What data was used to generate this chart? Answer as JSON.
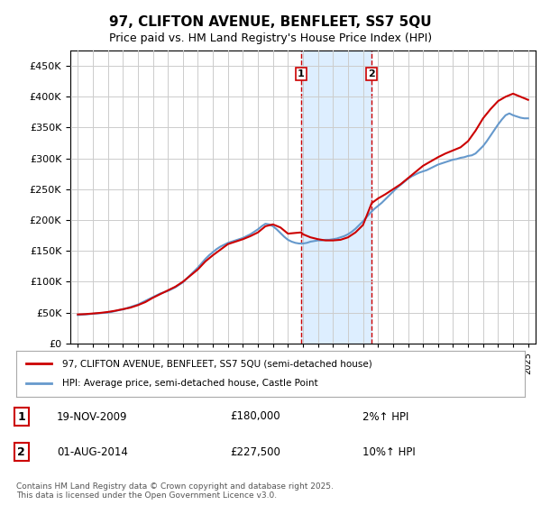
{
  "title": "97, CLIFTON AVENUE, BENFLEET, SS7 5QU",
  "subtitle": "Price paid vs. HM Land Registry's House Price Index (HPI)",
  "footer": "Contains HM Land Registry data © Crown copyright and database right 2025.\nThis data is licensed under the Open Government Licence v3.0.",
  "legend_line1": "97, CLIFTON AVENUE, BENFLEET, SS7 5QU (semi-detached house)",
  "legend_line2": "HPI: Average price, semi-detached house, Castle Point",
  "transactions": [
    {
      "num": 1,
      "date": "19-NOV-2009",
      "price": 180000,
      "pct": "2%↑ HPI",
      "year": 2009.88
    },
    {
      "num": 2,
      "date": "01-AUG-2014",
      "price": 227500,
      "pct": "10%↑ HPI",
      "year": 2014.58
    }
  ],
  "red_color": "#cc0000",
  "blue_color": "#6699cc",
  "shade_color": "#ddeeff",
  "grid_color": "#cccccc",
  "background_color": "#ffffff",
  "ylim": [
    0,
    475000
  ],
  "xlim": [
    1994.5,
    2025.5
  ],
  "yticks": [
    0,
    50000,
    100000,
    150000,
    200000,
    250000,
    300000,
    350000,
    400000,
    450000
  ],
  "xticks": [
    1995,
    1996,
    1997,
    1998,
    1999,
    2000,
    2001,
    2002,
    2003,
    2004,
    2005,
    2006,
    2007,
    2008,
    2009,
    2010,
    2011,
    2012,
    2013,
    2014,
    2015,
    2016,
    2017,
    2018,
    2019,
    2020,
    2021,
    2022,
    2023,
    2024,
    2025
  ],
  "hpi_years": [
    1995,
    1995.25,
    1995.5,
    1995.75,
    1996,
    1996.25,
    1996.5,
    1996.75,
    1997,
    1997.25,
    1997.5,
    1997.75,
    1998,
    1998.25,
    1998.5,
    1998.75,
    1999,
    1999.25,
    1999.5,
    1999.75,
    2000,
    2000.25,
    2000.5,
    2000.75,
    2001,
    2001.25,
    2001.5,
    2001.75,
    2002,
    2002.25,
    2002.5,
    2002.75,
    2003,
    2003.25,
    2003.5,
    2003.75,
    2004,
    2004.25,
    2004.5,
    2004.75,
    2005,
    2005.25,
    2005.5,
    2005.75,
    2006,
    2006.25,
    2006.5,
    2006.75,
    2007,
    2007.25,
    2007.5,
    2007.75,
    2008,
    2008.25,
    2008.5,
    2008.75,
    2009,
    2009.25,
    2009.5,
    2009.75,
    2010,
    2010.25,
    2010.5,
    2010.75,
    2011,
    2011.25,
    2011.5,
    2011.75,
    2012,
    2012.25,
    2012.5,
    2012.75,
    2013,
    2013.25,
    2013.5,
    2013.75,
    2014,
    2014.25,
    2014.5,
    2014.75,
    2015,
    2015.25,
    2015.5,
    2015.75,
    2016,
    2016.25,
    2016.5,
    2016.75,
    2017,
    2017.25,
    2017.5,
    2017.75,
    2018,
    2018.25,
    2018.5,
    2018.75,
    2019,
    2019.25,
    2019.5,
    2019.75,
    2020,
    2020.25,
    2020.5,
    2020.75,
    2021,
    2021.25,
    2021.5,
    2021.75,
    2022,
    2022.25,
    2022.5,
    2022.75,
    2023,
    2023.25,
    2023.5,
    2023.75,
    2024,
    2024.25,
    2024.5,
    2024.75,
    2025
  ],
  "hpi_values": [
    46000,
    46500,
    47000,
    47500,
    48000,
    48500,
    49000,
    49500,
    50000,
    51000,
    52500,
    54000,
    55000,
    57000,
    59000,
    61000,
    63000,
    66000,
    69000,
    72000,
    75000,
    78000,
    81000,
    83000,
    85000,
    88000,
    91000,
    95000,
    99000,
    105000,
    111000,
    117000,
    123000,
    130000,
    137000,
    143000,
    148000,
    153000,
    157000,
    160000,
    163000,
    165000,
    167000,
    169000,
    171000,
    174000,
    177000,
    181000,
    185000,
    190000,
    194000,
    193000,
    190000,
    185000,
    179000,
    173000,
    168000,
    165000,
    163000,
    162000,
    162000,
    163000,
    165000,
    166000,
    167000,
    167000,
    168000,
    168000,
    169000,
    170000,
    172000,
    174000,
    177000,
    181000,
    186000,
    192000,
    198000,
    205000,
    212000,
    218000,
    223000,
    228000,
    234000,
    240000,
    246000,
    252000,
    257000,
    262000,
    267000,
    271000,
    274000,
    277000,
    279000,
    281000,
    284000,
    287000,
    290000,
    292000,
    294000,
    296000,
    298000,
    299000,
    301000,
    302000,
    304000,
    305000,
    308000,
    314000,
    320000,
    328000,
    337000,
    346000,
    355000,
    363000,
    370000,
    373000,
    370000,
    368000,
    366000,
    365000,
    365000
  ],
  "red_years": [
    1995,
    1995.5,
    1996,
    1996.5,
    1997,
    1997.5,
    1998,
    1998.5,
    1999,
    1999.5,
    2000,
    2000.5,
    2001,
    2001.5,
    2002,
    2002.5,
    2003,
    2003.5,
    2004,
    2004.5,
    2005,
    2005.5,
    2006,
    2006.5,
    2007,
    2007.5,
    2008,
    2008.5,
    2009,
    2009.88,
    2010,
    2010.5,
    2011,
    2011.5,
    2012,
    2012.5,
    2013,
    2013.5,
    2014,
    2014.58,
    2015,
    2015.5,
    2016,
    2016.5,
    2017,
    2017.5,
    2018,
    2018.5,
    2019,
    2019.5,
    2020,
    2020.5,
    2021,
    2021.5,
    2022,
    2022.5,
    2023,
    2023.5,
    2024,
    2024.5,
    2025
  ],
  "red_values": [
    47000,
    47500,
    48500,
    49500,
    51000,
    53000,
    55500,
    58000,
    62000,
    67000,
    74000,
    80000,
    86000,
    92000,
    100000,
    110000,
    120000,
    133000,
    143000,
    152000,
    161000,
    165000,
    169000,
    174000,
    180000,
    190000,
    193000,
    188000,
    178000,
    180000,
    177000,
    172000,
    169000,
    167000,
    167000,
    168000,
    172000,
    180000,
    192000,
    227500,
    235000,
    242000,
    250000,
    258000,
    268000,
    278000,
    288000,
    295000,
    302000,
    308000,
    313000,
    318000,
    328000,
    345000,
    365000,
    380000,
    393000,
    400000,
    405000,
    400000,
    395000
  ]
}
